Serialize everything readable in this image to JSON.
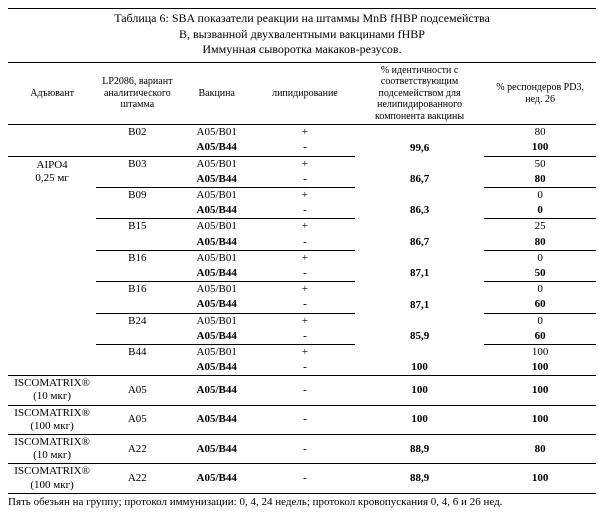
{
  "title_l1": "Таблица 6: SBA показатели реакции на штаммы MnB fHBP подсемейства",
  "title_l2": "B, вызванной двухвалентными вакцинами fHBP",
  "title_l3": "Иммунная сыворотка макаков-резусов.",
  "h": {
    "c1": "Адъювант",
    "c2": "LP2086, вариант аналитического штамма",
    "c3": "Вакцина",
    "c4": "липидирование",
    "c5": "% идентичности с соответствующим подсемейством для нелипидированного компонента вакцины",
    "c6": "% респондеров PD3, нед. 26"
  },
  "adjuvants": {
    "alpo4": "AIPO4 0,25 мг",
    "isco10": "ISCOMATRIX® (10 мкг)",
    "isco100": "ISCOMATRIX® (100 мкг)"
  },
  "r": [
    {
      "strain": "B02",
      "vac": "A05/B01",
      "lip": "+",
      "id": "",
      "resp": "80",
      "b": false,
      "bt": [
        "c2",
        "c3",
        "c4",
        "c6"
      ]
    },
    {
      "strain": "",
      "vac": "A05/B44",
      "lip": "-",
      "id": "99,6",
      "resp": "100",
      "b": true,
      "bt": []
    },
    {
      "strain": "B03",
      "vac": "A05/B01",
      "lip": "+",
      "id": "",
      "resp": "50",
      "b": false,
      "bt": [
        "c2",
        "c3",
        "c4",
        "c6"
      ]
    },
    {
      "strain": "",
      "vac": "A05/B44",
      "lip": "-",
      "id": "86,7",
      "resp": "80",
      "b": true,
      "bt": []
    },
    {
      "strain": "B09",
      "vac": "A05/B01",
      "lip": "+",
      "id": "",
      "resp": "0",
      "b": false,
      "bt": [
        "c2",
        "c3",
        "c4",
        "c6"
      ]
    },
    {
      "strain": "",
      "vac": "A05/B44",
      "lip": "-",
      "id": "86,3",
      "resp": "0",
      "b": true,
      "bt": []
    },
    {
      "strain": "B15",
      "vac": "A05/B01",
      "lip": "+",
      "id": "",
      "resp": "25",
      "b": false,
      "bt": [
        "c2",
        "c3",
        "c4",
        "c6"
      ]
    },
    {
      "strain": "",
      "vac": "A05/B44",
      "lip": "-",
      "id": "86,7",
      "resp": "80",
      "b": true,
      "bt": []
    },
    {
      "strain": "B16",
      "vac": "A05/B01",
      "lip": "+",
      "id": "",
      "resp": "0",
      "b": false,
      "bt": [
        "c2",
        "c3",
        "c4",
        "c6"
      ]
    },
    {
      "strain": "",
      "vac": "A05/B44",
      "lip": "-",
      "id": "87,1",
      "resp": "50",
      "b": true,
      "bt": []
    },
    {
      "strain": "B16",
      "vac": "A05/B01",
      "lip": "+",
      "id": "",
      "resp": "0",
      "b": false,
      "bt": [
        "c2",
        "c3",
        "c4",
        "c6"
      ]
    },
    {
      "strain": "",
      "vac": "A05/B44",
      "lip": "-",
      "id": "87,1",
      "resp": "60",
      "b": true,
      "bt": []
    },
    {
      "strain": "B24",
      "vac": "A05/B01",
      "lip": "+",
      "id": "",
      "resp": "0",
      "b": false,
      "bt": [
        "c2",
        "c3",
        "c4",
        "c6"
      ]
    },
    {
      "strain": "",
      "vac": "A05/B44",
      "lip": "-",
      "id": "85,9",
      "resp": "60",
      "b": true,
      "bt": []
    },
    {
      "strain": "B44",
      "vac": "A05/B01",
      "lip": "+",
      "id": "",
      "resp": "100",
      "b": false,
      "bt": [
        "c2",
        "c3",
        "c4",
        "c6"
      ]
    },
    {
      "strain": "",
      "vac": "A05/B44",
      "lip": "-",
      "id": "100",
      "resp": "100",
      "b": true,
      "bt": []
    }
  ],
  "iso": [
    {
      "adj": "isco10",
      "strain": "A05",
      "vac": "A05/B44",
      "lip": "-",
      "id": "100",
      "resp": "100"
    },
    {
      "adj": "isco100",
      "strain": "A05",
      "vac": "A05/B44",
      "lip": "-",
      "id": "100",
      "resp": "100"
    },
    {
      "adj": "isco10",
      "strain": "A22",
      "vac": "A05/B44",
      "lip": "-",
      "id": "88,9",
      "resp": "80"
    },
    {
      "adj": "isco100",
      "strain": "A22",
      "vac": "A05/B44",
      "lip": "-",
      "id": "88,9",
      "resp": "100"
    }
  ],
  "footnote": "Пять обезьян на группу; протокол иммунизации: 0, 4, 24 недель; протокол кровопускания 0, 4, 6 и 26 нед."
}
